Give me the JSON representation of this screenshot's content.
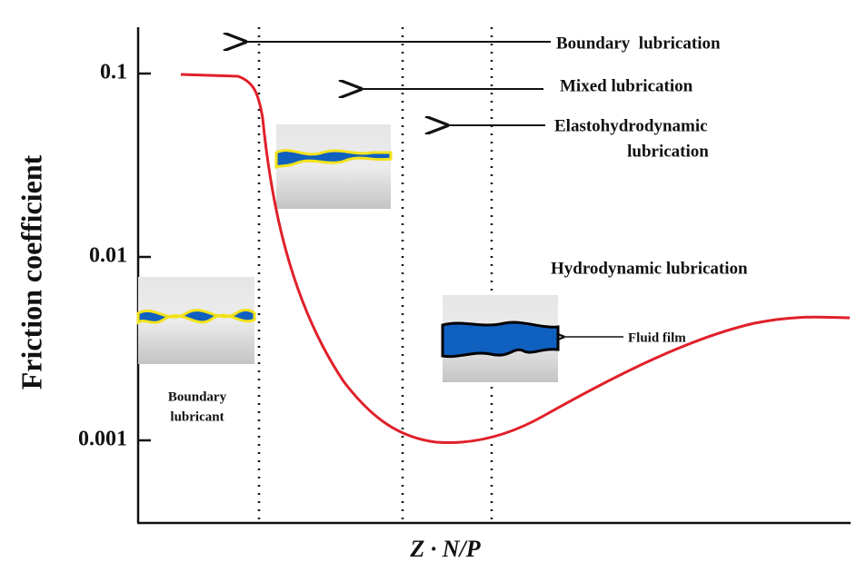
{
  "y_axis": {
    "label": "Friction coefficient",
    "ticks": [
      0.1,
      0.01,
      0.001
    ],
    "scale": "log"
  },
  "x_axis": {
    "label": "Z · N/P"
  },
  "regimes": [
    [
      "Boundary  lubrication"
    ],
    [
      "Mixed lubrication"
    ],
    [
      "Elastohydrodynamic",
      "lubrication"
    ],
    [
      "Hydrodynamic lubrication"
    ]
  ],
  "annotations": {
    "fluid_film": "Fluid film",
    "boundary_lubricant": [
      "Boundary",
      "lubricant"
    ]
  }
}
